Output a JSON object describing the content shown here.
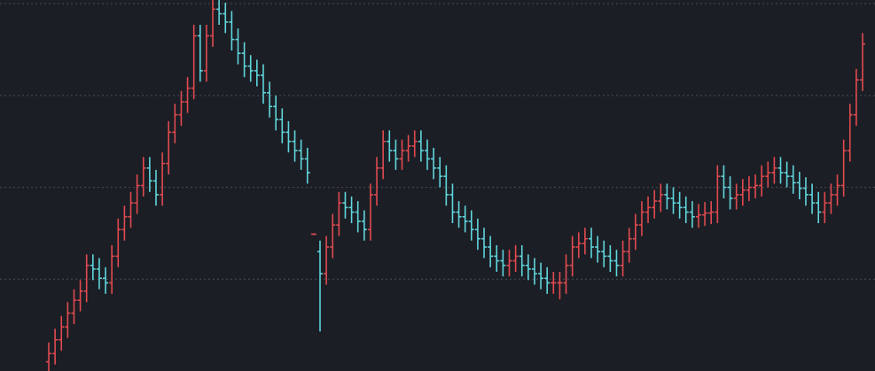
{
  "chart_data": {
    "type": "ohlc",
    "ylim": [
      0,
      4.04
    ],
    "yticks": [
      1,
      2,
      3,
      4
    ],
    "grid": true,
    "up_color": "#e04a50",
    "down_color": "#5fd6dc",
    "background": "#1c1e25",
    "open": [
      0.1,
      0.19,
      0.34,
      0.48,
      0.63,
      0.77,
      0.87,
      1.15,
      1.11,
      1.01,
      0.96,
      1.25,
      1.54,
      1.68,
      1.83,
      2.02,
      2.21,
      2.07,
      1.92,
      2.26,
      2.6,
      2.79,
      2.93,
      3.08,
      3.65,
      3.27,
      3.65,
      3.94,
      3.89,
      3.8,
      3.61,
      3.46,
      3.32,
      3.27,
      3.22,
      3.03,
      2.88,
      2.74,
      2.6,
      2.5,
      2.4,
      2.31,
      1.49,
      1.3,
      1.06,
      1.35,
      1.59,
      1.83,
      1.78,
      1.73,
      1.63,
      1.54,
      1.92,
      2.21,
      2.5,
      2.4,
      2.31,
      2.4,
      2.45,
      2.5,
      2.4,
      2.31,
      2.21,
      2.12,
      1.92,
      1.73,
      1.68,
      1.63,
      1.54,
      1.44,
      1.35,
      1.25,
      1.2,
      1.15,
      1.2,
      1.25,
      1.15,
      1.11,
      1.06,
      1.01,
      0.96,
      0.96,
      0.96,
      1.15,
      1.35,
      1.39,
      1.44,
      1.35,
      1.3,
      1.25,
      1.2,
      1.15,
      1.3,
      1.44,
      1.59,
      1.73,
      1.78,
      1.85,
      1.92,
      1.88,
      1.83,
      1.78,
      1.73,
      1.68,
      1.7,
      1.72,
      1.73,
      2.12,
      2.0,
      1.88,
      1.92,
      1.97,
      2.0,
      2.02,
      2.12,
      2.16,
      2.21,
      2.16,
      2.12,
      2.05,
      1.99,
      1.92,
      1.83,
      1.73,
      1.83,
      1.92,
      2.02,
      2.4,
      2.79,
      3.17
    ],
    "high": [
      0.31,
      0.46,
      0.6,
      0.75,
      0.89,
      0.99,
      1.27,
      1.27,
      1.23,
      1.13,
      1.37,
      1.66,
      1.8,
      1.95,
      2.14,
      2.33,
      2.33,
      2.19,
      2.38,
      2.72,
      2.91,
      3.05,
      3.2,
      3.77,
      3.77,
      3.77,
      4.04,
      4.04,
      4.01,
      3.92,
      3.73,
      3.58,
      3.44,
      3.39,
      3.34,
      3.15,
      3.0,
      2.86,
      2.72,
      2.62,
      2.52,
      2.43,
      1.5,
      1.42,
      1.47,
      1.71,
      1.95,
      1.95,
      1.9,
      1.85,
      1.75,
      2.04,
      2.33,
      2.62,
      2.62,
      2.52,
      2.52,
      2.57,
      2.62,
      2.62,
      2.52,
      2.43,
      2.33,
      2.24,
      2.04,
      1.85,
      1.8,
      1.75,
      1.66,
      1.56,
      1.47,
      1.37,
      1.32,
      1.32,
      1.37,
      1.37,
      1.27,
      1.23,
      1.18,
      1.13,
      1.08,
      1.08,
      1.27,
      1.47,
      1.51,
      1.56,
      1.56,
      1.47,
      1.42,
      1.37,
      1.32,
      1.42,
      1.56,
      1.71,
      1.85,
      1.9,
      1.97,
      2.04,
      2.04,
      2.0,
      1.95,
      1.9,
      1.85,
      1.82,
      1.84,
      1.85,
      2.24,
      2.24,
      2.12,
      2.04,
      2.09,
      2.12,
      2.14,
      2.24,
      2.28,
      2.33,
      2.33,
      2.28,
      2.24,
      2.17,
      2.11,
      2.04,
      1.95,
      1.95,
      2.04,
      2.14,
      2.52,
      2.91,
      3.29,
      3.68
    ],
    "low": [
      0.0,
      0.07,
      0.22,
      0.36,
      0.51,
      0.65,
      0.75,
      0.99,
      0.89,
      0.84,
      0.84,
      1.13,
      1.42,
      1.56,
      1.71,
      1.9,
      1.95,
      1.8,
      1.8,
      2.14,
      2.48,
      2.67,
      2.81,
      2.96,
      3.15,
      3.15,
      3.53,
      3.77,
      3.68,
      3.49,
      3.34,
      3.2,
      3.15,
      3.1,
      2.91,
      2.76,
      2.62,
      2.48,
      2.38,
      2.28,
      2.19,
      2.04,
      1.48,
      0.43,
      0.94,
      1.23,
      1.47,
      1.66,
      1.61,
      1.51,
      1.42,
      1.42,
      1.8,
      2.09,
      2.28,
      2.19,
      2.19,
      2.28,
      2.33,
      2.28,
      2.19,
      2.09,
      2.0,
      1.8,
      1.61,
      1.56,
      1.51,
      1.42,
      1.32,
      1.23,
      1.13,
      1.08,
      1.03,
      1.03,
      1.08,
      1.03,
      0.99,
      0.94,
      0.89,
      0.84,
      0.84,
      0.78,
      0.84,
      1.03,
      1.23,
      1.27,
      1.23,
      1.18,
      1.13,
      1.08,
      1.03,
      1.03,
      1.18,
      1.32,
      1.47,
      1.61,
      1.66,
      1.73,
      1.76,
      1.71,
      1.66,
      1.61,
      1.56,
      1.56,
      1.58,
      1.6,
      1.61,
      1.88,
      1.76,
      1.76,
      1.8,
      1.85,
      1.88,
      1.9,
      2.0,
      2.04,
      2.04,
      2.0,
      1.93,
      1.87,
      1.8,
      1.71,
      1.61,
      1.61,
      1.71,
      1.8,
      1.9,
      2.28,
      2.67,
      3.05
    ],
    "close": [
      0.19,
      0.34,
      0.48,
      0.63,
      0.77,
      0.87,
      1.15,
      1.11,
      1.01,
      0.96,
      1.25,
      1.54,
      1.68,
      1.83,
      2.02,
      2.21,
      2.07,
      1.92,
      2.26,
      2.6,
      2.79,
      2.93,
      3.08,
      3.65,
      3.27,
      3.65,
      3.94,
      3.89,
      3.8,
      3.61,
      3.46,
      3.32,
      3.27,
      3.22,
      3.03,
      2.88,
      2.74,
      2.6,
      2.5,
      2.4,
      2.31,
      2.16,
      1.49,
      1.06,
      1.35,
      1.59,
      1.83,
      1.78,
      1.73,
      1.63,
      1.54,
      1.92,
      2.21,
      2.5,
      2.4,
      2.31,
      2.4,
      2.45,
      2.5,
      2.4,
      2.31,
      2.21,
      2.12,
      1.92,
      1.73,
      1.68,
      1.63,
      1.54,
      1.44,
      1.35,
      1.25,
      1.2,
      1.15,
      1.2,
      1.25,
      1.15,
      1.11,
      1.06,
      1.01,
      0.96,
      0.96,
      0.96,
      1.15,
      1.35,
      1.39,
      1.44,
      1.35,
      1.3,
      1.25,
      1.2,
      1.15,
      1.3,
      1.44,
      1.59,
      1.73,
      1.78,
      1.85,
      1.92,
      1.88,
      1.83,
      1.78,
      1.73,
      1.68,
      1.7,
      1.72,
      1.73,
      2.12,
      2.0,
      1.88,
      1.92,
      1.97,
      2.0,
      2.02,
      2.12,
      2.16,
      2.21,
      2.16,
      2.12,
      2.05,
      1.99,
      1.92,
      1.83,
      1.73,
      1.83,
      1.92,
      2.02,
      2.4,
      2.79,
      3.17,
      3.56
    ]
  }
}
